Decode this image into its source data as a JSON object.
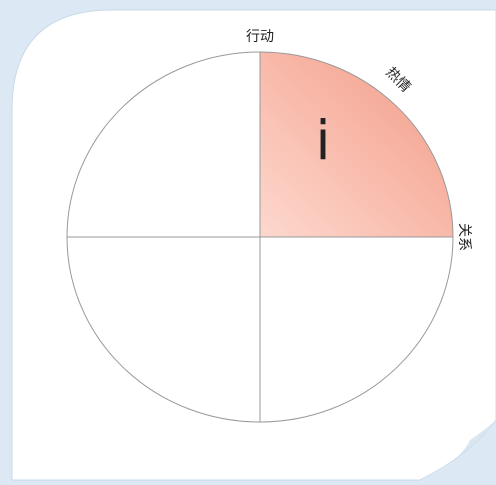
{
  "diagram": {
    "top_label": "行动",
    "diagonal_label": "热情",
    "right_label": "关系",
    "quadrant_label": "i"
  }
}
